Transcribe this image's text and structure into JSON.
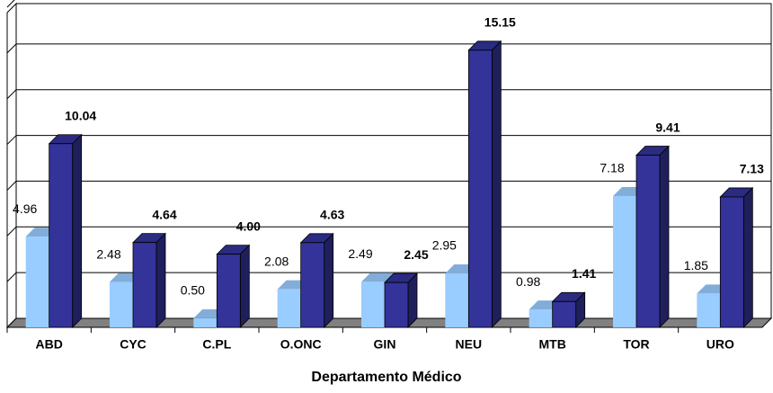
{
  "chart_data": {
    "type": "bar3d",
    "x_label": "Departamento Médico",
    "categories": [
      "ABD",
      "CYC",
      "C.PL",
      "O.ONC",
      "GIN",
      "NEU",
      "MTB",
      "TOR",
      "URO"
    ],
    "series": [
      {
        "color": "#99ccff",
        "values": [
          4.96,
          2.48,
          0.5,
          2.08,
          2.49,
          2.95,
          0.98,
          7.18,
          1.85
        ],
        "value_labels": [
          "4.96",
          "2.48",
          "0.50",
          "2.08",
          "2.49",
          "2.95",
          "0.98",
          "7.18",
          "1.85"
        ]
      },
      {
        "color": "#333399",
        "values": [
          10.04,
          4.64,
          4.0,
          4.63,
          2.45,
          15.15,
          1.41,
          9.41,
          7.13
        ],
        "value_labels": [
          "10.04",
          "4.64",
          "4.00",
          "4.63",
          "2.45",
          "15.15",
          "1.41",
          "9.41",
          "7.13"
        ]
      }
    ],
    "ylim": [
      0,
      17.5
    ],
    "yticks": [
      0,
      2.5,
      5,
      7.5,
      10,
      12.5,
      15,
      17.5
    ],
    "grid": true
  }
}
